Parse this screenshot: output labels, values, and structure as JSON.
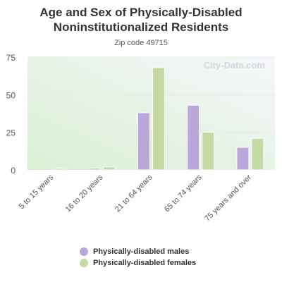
{
  "chart_data": {
    "type": "bar",
    "title": "Age and Sex of Physically-Disabled Noninstitutionalized Residents",
    "subtitle": "Zip code 49715",
    "watermark": "City-Data.com",
    "categories": [
      "5 to 15 years",
      "16 to 20 years",
      "21 to 64 years",
      "65 to 74 years",
      "75 years and over"
    ],
    "series": [
      {
        "name": "Physically-disabled males",
        "color": "#b9a7d9",
        "values": [
          0,
          1,
          38,
          43,
          15
        ]
      },
      {
        "name": "Physically-disabled females",
        "color": "#c5d9a5",
        "values": [
          1,
          2,
          68,
          25,
          21
        ]
      }
    ],
    "yticks": [
      "0",
      "25",
      "50",
      "75"
    ],
    "ylim": [
      0,
      75
    ],
    "grid": true,
    "legend_position": "bottom"
  }
}
